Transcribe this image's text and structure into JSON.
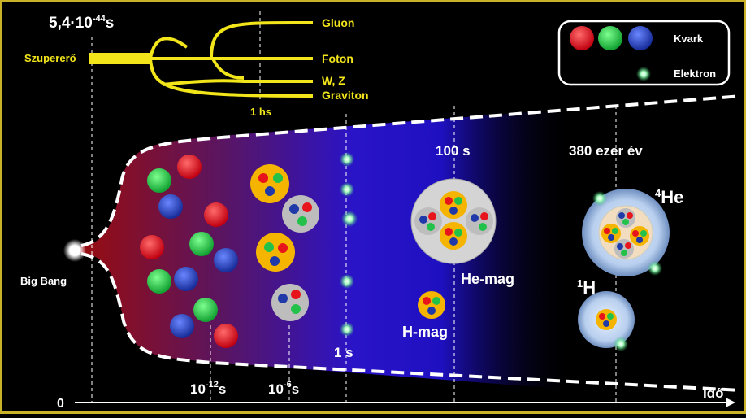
{
  "colors": {
    "frame": "#c9b227",
    "yellow": "#f2e51a",
    "red": "#e8141c",
    "green": "#22c24a",
    "blue": "#1f3aa8",
    "orange": "#f5b400",
    "electron": "#8ef0b0"
  },
  "top": {
    "planck_time": "5,4·10",
    "planck_exp": "-44",
    "planck_unit": "s",
    "superforce": "Szupererő",
    "forces": [
      "Gluon",
      "Foton",
      "W, Z",
      "Graviton"
    ],
    "hs": "1 hs"
  },
  "legend": {
    "quark": "Kvark",
    "electron": "Elektron"
  },
  "timeline": {
    "origin": "Big Bang",
    "zero": "0",
    "axis": "Idő",
    "t12_base": "10",
    "t12_exp": "-12",
    "t12_unit": "s",
    "t6_base": "10",
    "t6_exp": "-6",
    "t6_unit": "s",
    "t1s": "1 s",
    "t100s": "100 s",
    "t380": "380 ezer év"
  },
  "labels": {
    "he_nucleus": "He-mag",
    "h_nucleus": "H-mag",
    "h_atom_sup": "1",
    "h_atom": "H",
    "he_atom_sup": "4",
    "he_atom": "He"
  }
}
